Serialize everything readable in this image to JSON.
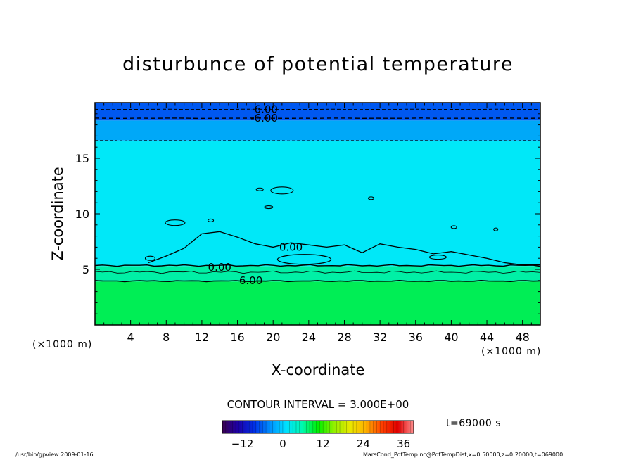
{
  "chart_data": {
    "type": "heatmap",
    "title": "disturbunce of potential temperature",
    "xlabel": "X-coordinate",
    "ylabel": "Z-coordinate",
    "x_unit_label": "(×1000 m)",
    "xlim": [
      0,
      50
    ],
    "ylim": [
      0,
      20
    ],
    "x_ticks": [
      4,
      8,
      12,
      16,
      20,
      24,
      28,
      32,
      36,
      40,
      44,
      48
    ],
    "y_ticks": [
      5,
      10,
      15
    ],
    "contour_interval_text": "CONTOUR INTERVAL = 3.000E+00",
    "contour_labels": [
      {
        "text": "-6.00",
        "x": 19,
        "z": 19.4
      },
      {
        "text": "-6.00",
        "x": 19,
        "z": 18.6
      },
      {
        "text": "0.00",
        "x": 22,
        "z": 7.0
      },
      {
        "text": "0.00",
        "x": 14,
        "z": 5.2
      },
      {
        "text": "6.00",
        "x": 17.5,
        "z": 4.0
      }
    ],
    "colorbar": {
      "min": -18,
      "max": 39,
      "ticks": [
        -12,
        0,
        12,
        24,
        36
      ],
      "colors": [
        "#3a0050",
        "#1c00a8",
        "#0030e8",
        "#0090ff",
        "#00e0ff",
        "#00f8b0",
        "#00f000",
        "#90f000",
        "#e8e800",
        "#ffb000",
        "#ff4000",
        "#e00000",
        "#ff9090"
      ]
    },
    "fill_bands": [
      {
        "z0": 0,
        "z1": 3.9,
        "value": 6,
        "color": "#00ee55"
      },
      {
        "z0": 3.9,
        "z1": 5.3,
        "value": 3,
        "color": "#00f0a6"
      },
      {
        "z0": 5.3,
        "z1": 16.6,
        "value": 0,
        "color": "#00e8f8"
      },
      {
        "z0": 16.6,
        "z1": 18.4,
        "value": -3,
        "color": "#00a8f8"
      },
      {
        "z0": 18.4,
        "z1": 20,
        "value": -6,
        "color": "#0058f0"
      }
    ],
    "time_label": "t=69000 s"
  },
  "footer": {
    "left": "/usr/bin/gpview   2009-01-16",
    "right": "MarsCond_PotTemp.nc@PotTempDist,x=0:50000,z=0:20000,t=069000"
  }
}
